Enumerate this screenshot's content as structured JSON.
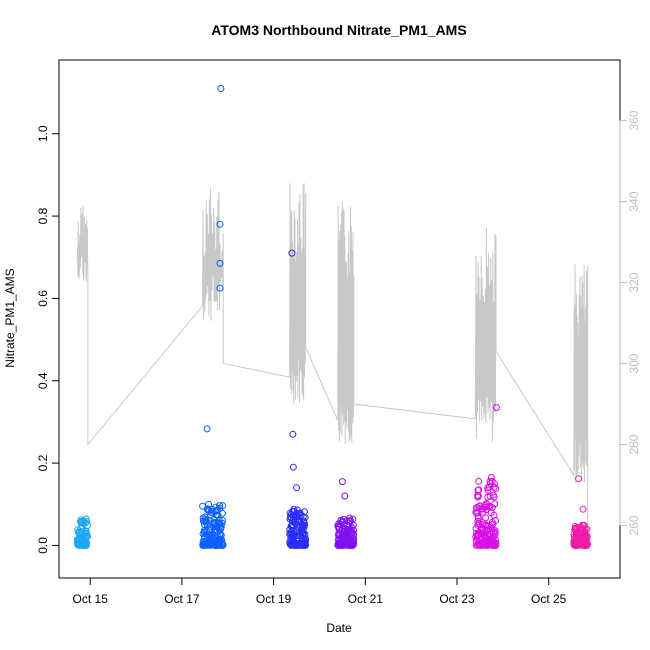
{
  "chart_data": {
    "type": "scatter",
    "title": "ATOM3 Northbound Nitrate_PM1_AMS",
    "xlabel": "Date",
    "ylabel": "Nitrate_PM1_AMS",
    "xlim_days": [
      14.45,
      26.25
    ],
    "ylim": [
      -0.05,
      1.15
    ],
    "y2lim": [
      250,
      372
    ],
    "x_ticks": [
      {
        "day": 15,
        "label": "Oct 15"
      },
      {
        "day": 17,
        "label": "Oct 17"
      },
      {
        "day": 19,
        "label": "Oct 19"
      },
      {
        "day": 21,
        "label": "Oct 21"
      },
      {
        "day": 23,
        "label": "Oct 23"
      },
      {
        "day": 25,
        "label": "Oct 25"
      }
    ],
    "y_ticks": [
      {
        "value": 0.0,
        "label": "0.0"
      },
      {
        "value": 0.2,
        "label": "0.2"
      },
      {
        "value": 0.4,
        "label": "0.4"
      },
      {
        "value": 0.6,
        "label": "0.6"
      },
      {
        "value": 0.8,
        "label": "0.8"
      },
      {
        "value": 1.0,
        "label": "1.0"
      }
    ],
    "y2_ticks": [
      {
        "value": 260,
        "label": "260"
      },
      {
        "value": 280,
        "label": "280"
      },
      {
        "value": 300,
        "label": "300"
      },
      {
        "value": 320,
        "label": "320"
      },
      {
        "value": 340,
        "label": "340"
      },
      {
        "value": 360,
        "label": "360"
      }
    ],
    "grid": false,
    "legend": "none",
    "line_color": "#c8c8c8",
    "flights": [
      {
        "start": 14.72,
        "end": 14.95,
        "color": "#1ea8f2",
        "count": 90,
        "min": 320,
        "max": 340,
        "low": 0.0,
        "high": 0.065,
        "outliers": []
      },
      {
        "start": 17.45,
        "end": 17.9,
        "color": "#0c60ff",
        "count": 150,
        "min": 310,
        "max": 345,
        "low": 0.0,
        "high": 0.1,
        "outliers": [
          [
            17.85,
            1.11
          ],
          [
            17.83,
            0.78
          ],
          [
            17.83,
            0.685
          ],
          [
            17.83,
            0.625
          ],
          [
            17.55,
            0.283
          ]
        ]
      },
      {
        "start": 19.35,
        "end": 19.7,
        "color": "#2a2ef2",
        "count": 130,
        "min": 290,
        "max": 345,
        "low": 0.0,
        "high": 0.09,
        "outliers": [
          [
            19.4,
            0.71
          ],
          [
            19.42,
            0.27
          ],
          [
            19.43,
            0.19
          ],
          [
            19.5,
            0.14
          ]
        ]
      },
      {
        "start": 20.4,
        "end": 20.75,
        "color": "#8010f0",
        "count": 130,
        "min": 280,
        "max": 340,
        "low": 0.0,
        "high": 0.07,
        "outliers": [
          [
            20.5,
            0.155
          ],
          [
            20.55,
            0.12
          ]
        ]
      },
      {
        "start": 23.4,
        "end": 23.85,
        "color": "#d810e8",
        "count": 150,
        "min": 280,
        "max": 335,
        "low": 0.0,
        "high": 0.16,
        "outliers": [
          [
            23.86,
            0.335
          ],
          [
            23.75,
            0.165
          ]
        ]
      },
      {
        "start": 25.55,
        "end": 25.85,
        "color": "#f01ca6",
        "count": 110,
        "min": 270,
        "max": 325,
        "low": 0.0,
        "high": 0.05,
        "outliers": [
          [
            25.65,
            0.162
          ],
          [
            25.75,
            0.088
          ]
        ]
      }
    ]
  }
}
